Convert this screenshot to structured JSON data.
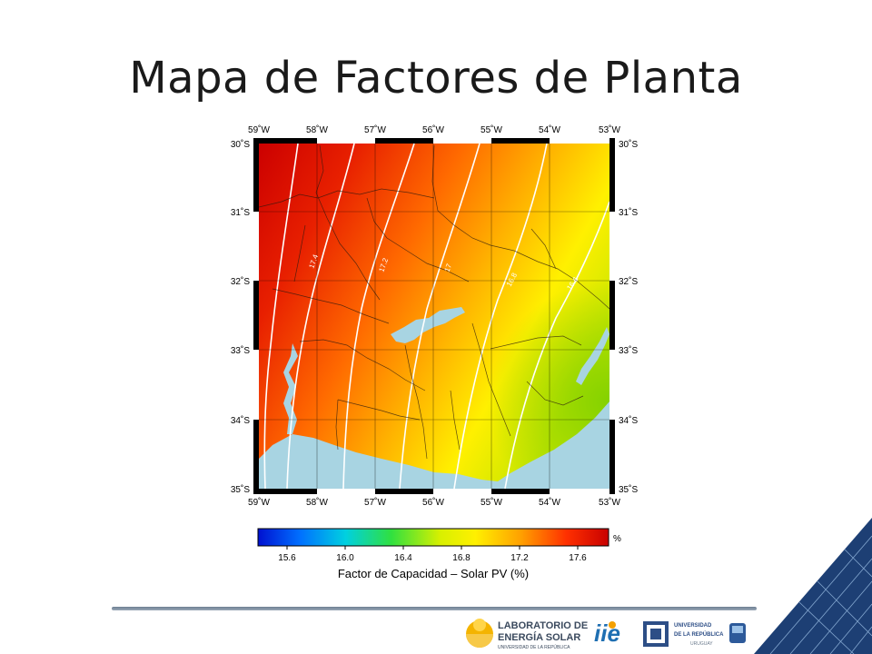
{
  "slide": {
    "title": "Mapa de Factores de Planta"
  },
  "map": {
    "lon_labels": [
      "59˚W",
      "58˚W",
      "57˚W",
      "56˚W",
      "55˚W",
      "54˚W",
      "53˚W"
    ],
    "lat_labels": [
      "30˚S",
      "31˚S",
      "32˚S",
      "33˚S",
      "34˚S",
      "35˚S"
    ],
    "contour_labels": [
      "17.4",
      "17.2",
      "17",
      "16.8",
      "16.6"
    ],
    "colors": {
      "water": "#a8d4e2",
      "hot": "#d80000",
      "warm": "#ff7800",
      "mid": "#ffdc00",
      "cool": "#bfe000",
      "coolest": "#8cd200"
    }
  },
  "colorbar": {
    "ticks": [
      "15.6",
      "16.0",
      "16.4",
      "16.8",
      "17.2",
      "17.6"
    ],
    "unit": "%",
    "caption": "Factor de Capacidad – Solar PV (%)"
  },
  "footer": {
    "les_line1": "LABORATORIO DE",
    "les_line2": "ENERGÍA SOLAR",
    "les_line3": "UNIVERSIDAD DE LA REPÚBLICA",
    "udelar_line1": "UNIVERSIDAD",
    "udelar_line2": "DE LA REPÚBLICA",
    "udelar_line3": "URUGUAY",
    "iie_mark": "iie"
  }
}
